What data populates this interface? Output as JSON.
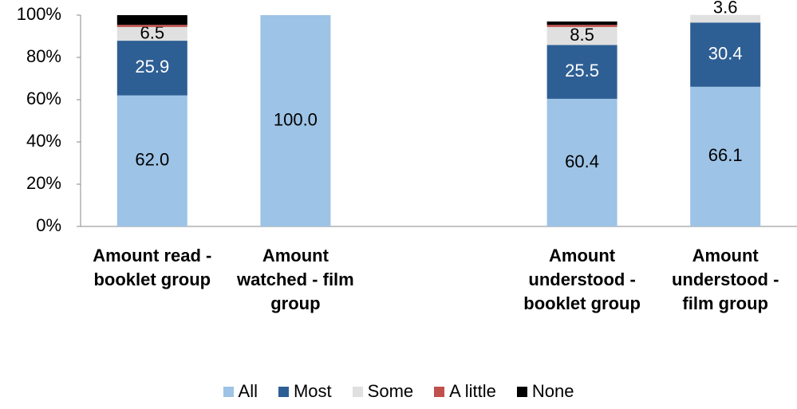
{
  "chart_data": {
    "type": "stacked_bar",
    "categories": [
      "Amount read - booklet group",
      "Amount watched - film group",
      null,
      "Amount understood - booklet group",
      "Amount understood - film group"
    ],
    "series": [
      {
        "name": "All",
        "color": "#9dc3e6",
        "values": [
          62.0,
          100.0,
          null,
          60.4,
          66.1
        ],
        "value_labels": [
          "62.0",
          "100.0",
          null,
          "60.4",
          "66.1"
        ]
      },
      {
        "name": "Most",
        "color": "#2e5f94",
        "values": [
          25.9,
          null,
          null,
          25.5,
          30.4
        ],
        "value_labels": [
          "25.9",
          null,
          null,
          "25.5",
          "30.4"
        ]
      },
      {
        "name": "Some",
        "color": "#e0e0e0",
        "values": [
          6.5,
          null,
          null,
          8.5,
          3.6
        ],
        "value_labels": [
          "6.5",
          null,
          null,
          "8.5",
          "3.6"
        ]
      },
      {
        "name": "A little",
        "color": "#c0504d",
        "values": [
          1.0,
          null,
          null,
          1.0,
          null
        ]
      },
      {
        "name": "None",
        "color": "#000000",
        "values": [
          4.6,
          null,
          null,
          1.6,
          null
        ]
      }
    ],
    "ylim": [
      0,
      100
    ],
    "yticks": [
      {
        "value": 0,
        "label": "0%"
      },
      {
        "value": 20,
        "label": "20%"
      },
      {
        "value": 40,
        "label": "40%"
      },
      {
        "value": 60,
        "label": "60%"
      },
      {
        "value": 80,
        "label": "80%"
      },
      {
        "value": 100,
        "label": "100%"
      }
    ],
    "legend": "bottom"
  }
}
